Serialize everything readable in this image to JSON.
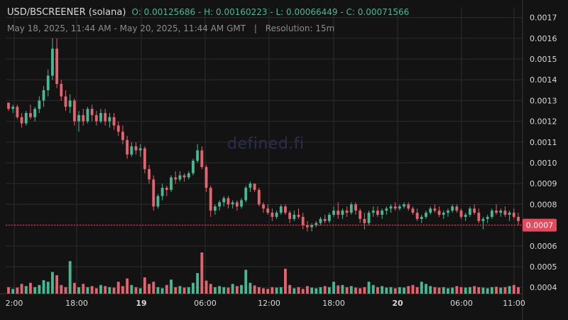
{
  "header": {
    "pair": "USD/BSCREENER (solana)",
    "ohlc": "O: 0.00125686 - H: 0.00160223 - L: 0.00066449 - C: 0.00071566",
    "range": "May 18, 2025, 11:44 AM - May 20, 2025, 11:44 AM GMT",
    "separator": "|",
    "resolution": "Resolution: 15m"
  },
  "watermark": "defined.fi",
  "colors": {
    "background": "#131313",
    "up": "#48b892",
    "down": "#e5636d",
    "grid": "#2c2c2c",
    "axis_text": "#d9d9d9",
    "last_price_tag": "#e5495b"
  },
  "chart_data": {
    "type": "candlestick",
    "resolution": "15m",
    "x_tick_labels": [
      "2:00",
      "18:00",
      "19",
      "06:00",
      "12:00",
      "18:00",
      "20",
      "06:00",
      "11:00"
    ],
    "y_tick_labels": [
      "0.0017",
      "0.0016",
      "0.0015",
      "0.0014",
      "0.0013",
      "0.0012",
      "0.0011",
      "0.0010",
      "0.0009",
      "0.0008",
      "0.0007",
      "0.0006",
      "0.0005",
      "0.0004"
    ],
    "ylim": [
      0.00037,
      0.00175
    ],
    "last_price": 0.0007,
    "last_price_label": "0.0007",
    "grid": true,
    "watermark_visible": true,
    "ohlc": [
      [
        0.00129,
        0.00129,
        0.00125,
        0.00126
      ],
      [
        0.00126,
        0.00128,
        0.00124,
        0.00127
      ],
      [
        0.00127,
        0.00128,
        0.00121,
        0.00122
      ],
      [
        0.00122,
        0.00124,
        0.00117,
        0.00119
      ],
      [
        0.00119,
        0.00125,
        0.00118,
        0.00124
      ],
      [
        0.00124,
        0.00128,
        0.00121,
        0.00122
      ],
      [
        0.00122,
        0.00127,
        0.0012,
        0.00126
      ],
      [
        0.00126,
        0.00132,
        0.00124,
        0.0013
      ],
      [
        0.0013,
        0.00137,
        0.00127,
        0.00135
      ],
      [
        0.00135,
        0.00145,
        0.00132,
        0.00142
      ],
      [
        0.00142,
        0.0016,
        0.0014,
        0.00155
      ],
      [
        0.00155,
        0.0016,
        0.00136,
        0.00138
      ],
      [
        0.00138,
        0.0014,
        0.0013,
        0.00132
      ],
      [
        0.00132,
        0.00135,
        0.00125,
        0.00127
      ],
      [
        0.00127,
        0.00133,
        0.00124,
        0.0013
      ],
      [
        0.0013,
        0.00131,
        0.00118,
        0.0012
      ],
      [
        0.0012,
        0.00125,
        0.00115,
        0.00123
      ],
      [
        0.00123,
        0.00126,
        0.00118,
        0.0012
      ],
      [
        0.0012,
        0.00127,
        0.00119,
        0.00126
      ],
      [
        0.00126,
        0.00128,
        0.0012,
        0.00123
      ],
      [
        0.00123,
        0.00125,
        0.00118,
        0.0012
      ],
      [
        0.0012,
        0.00126,
        0.00119,
        0.00124
      ],
      [
        0.00124,
        0.00126,
        0.00118,
        0.0012
      ],
      [
        0.0012,
        0.00124,
        0.00117,
        0.00122
      ],
      [
        0.00122,
        0.00124,
        0.00116,
        0.00118
      ],
      [
        0.00118,
        0.0012,
        0.00113,
        0.00115
      ],
      [
        0.00115,
        0.00118,
        0.00109,
        0.00111
      ],
      [
        0.00111,
        0.00113,
        0.00102,
        0.00104
      ],
      [
        0.00104,
        0.0011,
        0.00103,
        0.00108
      ],
      [
        0.00108,
        0.0011,
        0.00104,
        0.00106
      ],
      [
        0.00106,
        0.00109,
        0.00103,
        0.00107
      ],
      [
        0.00107,
        0.00108,
        0.00095,
        0.00097
      ],
      [
        0.00097,
        0.00099,
        0.0009,
        0.00092
      ],
      [
        0.00092,
        0.00094,
        0.00077,
        0.00079
      ],
      [
        0.00079,
        0.00085,
        0.00078,
        0.00084
      ],
      [
        0.00084,
        0.0009,
        0.00082,
        0.00088
      ],
      [
        0.00088,
        0.00089,
        0.00084,
        0.00087
      ],
      [
        0.00087,
        0.00094,
        0.00086,
        0.00093
      ],
      [
        0.00093,
        0.00096,
        0.0009,
        0.00092
      ],
      [
        0.00092,
        0.00096,
        0.00091,
        0.00094
      ],
      [
        0.00094,
        0.00095,
        0.00091,
        0.00093
      ],
      [
        0.00093,
        0.00096,
        0.00092,
        0.00095
      ],
      [
        0.00095,
        0.00102,
        0.00094,
        0.00101
      ],
      [
        0.00101,
        0.00109,
        0.001,
        0.00106
      ],
      [
        0.00106,
        0.00108,
        0.00097,
        0.00098
      ],
      [
        0.00098,
        0.00099,
        0.00086,
        0.00088
      ],
      [
        0.00088,
        0.00089,
        0.00074,
        0.00077
      ],
      [
        0.00077,
        0.0008,
        0.00075,
        0.00079
      ],
      [
        0.00079,
        0.00082,
        0.00077,
        0.00081
      ],
      [
        0.00081,
        0.00084,
        0.00079,
        0.00083
      ],
      [
        0.00083,
        0.00084,
        0.00078,
        0.0008
      ],
      [
        0.0008,
        0.00082,
        0.00078,
        0.00081
      ],
      [
        0.00081,
        0.00082,
        0.00077,
        0.00079
      ],
      [
        0.00079,
        0.00083,
        0.00078,
        0.00082
      ],
      [
        0.00082,
        0.00089,
        0.00081,
        0.00088
      ],
      [
        0.00088,
        0.00091,
        0.00086,
        0.0009
      ],
      [
        0.0009,
        0.0009,
        0.00086,
        0.00087
      ],
      [
        0.00087,
        0.00088,
        0.00079,
        0.0008
      ],
      [
        0.0008,
        0.00081,
        0.00076,
        0.00078
      ],
      [
        0.00078,
        0.0008,
        0.00075,
        0.00076
      ],
      [
        0.00076,
        0.00078,
        0.00072,
        0.00074
      ],
      [
        0.00074,
        0.00077,
        0.00073,
        0.00076
      ],
      [
        0.00076,
        0.0008,
        0.00075,
        0.00079
      ],
      [
        0.00079,
        0.0008,
        0.00075,
        0.00076
      ],
      [
        0.00076,
        0.00077,
        0.00071,
        0.00073
      ],
      [
        0.00073,
        0.00077,
        0.00072,
        0.00075
      ],
      [
        0.00075,
        0.00078,
        0.00073,
        0.00074
      ],
      [
        0.00074,
        0.00076,
        0.00068,
        0.0007
      ],
      [
        0.0007,
        0.00072,
        0.00067,
        0.00069
      ],
      [
        0.00069,
        0.00071,
        0.00067,
        0.0007
      ],
      [
        0.0007,
        0.00072,
        0.00069,
        0.00071
      ],
      [
        0.00071,
        0.00074,
        0.0007,
        0.00073
      ],
      [
        0.00073,
        0.00075,
        0.00071,
        0.00072
      ],
      [
        0.00072,
        0.00076,
        0.00071,
        0.00075
      ],
      [
        0.00075,
        0.00079,
        0.00074,
        0.00077
      ],
      [
        0.00077,
        0.00081,
        0.00073,
        0.00075
      ],
      [
        0.00075,
        0.00078,
        0.00073,
        0.00077
      ],
      [
        0.00077,
        0.00079,
        0.00074,
        0.00076
      ],
      [
        0.00076,
        0.00081,
        0.00075,
        0.0008
      ],
      [
        0.0008,
        0.00081,
        0.00075,
        0.00077
      ],
      [
        0.00077,
        0.00078,
        0.00071,
        0.00073
      ],
      [
        0.00073,
        0.00076,
        0.00068,
        0.00071
      ],
      [
        0.00071,
        0.00077,
        0.0007,
        0.00076
      ],
      [
        0.00076,
        0.00079,
        0.00074,
        0.00077
      ],
      [
        0.00077,
        0.00079,
        0.00074,
        0.00075
      ],
      [
        0.00075,
        0.00078,
        0.00073,
        0.00077
      ],
      [
        0.00077,
        0.00079,
        0.00075,
        0.00078
      ],
      [
        0.00078,
        0.0008,
        0.00076,
        0.00079
      ],
      [
        0.00079,
        0.00081,
        0.00077,
        0.00078
      ],
      [
        0.00078,
        0.0008,
        0.00077,
        0.00079
      ],
      [
        0.00079,
        0.00081,
        0.00078,
        0.0008
      ],
      [
        0.0008,
        0.00081,
        0.00077,
        0.00078
      ],
      [
        0.00078,
        0.00079,
        0.00075,
        0.00076
      ],
      [
        0.00076,
        0.00078,
        0.00072,
        0.00073
      ],
      [
        0.00073,
        0.00075,
        0.00071,
        0.00074
      ],
      [
        0.00074,
        0.00077,
        0.00073,
        0.00076
      ],
      [
        0.00076,
        0.00079,
        0.00075,
        0.00078
      ],
      [
        0.00078,
        0.0008,
        0.00076,
        0.00077
      ],
      [
        0.00077,
        0.00079,
        0.00074,
        0.00075
      ],
      [
        0.00075,
        0.00077,
        0.00073,
        0.00076
      ],
      [
        0.00076,
        0.00078,
        0.00074,
        0.00077
      ],
      [
        0.00077,
        0.0008,
        0.00076,
        0.00079
      ],
      [
        0.00079,
        0.0008,
        0.00076,
        0.00077
      ],
      [
        0.00077,
        0.00078,
        0.00073,
        0.00074
      ],
      [
        0.00074,
        0.00076,
        0.00072,
        0.00075
      ],
      [
        0.00075,
        0.00079,
        0.00074,
        0.00078
      ],
      [
        0.00078,
        0.0008,
        0.00075,
        0.00076
      ],
      [
        0.00076,
        0.00078,
        0.00071,
        0.00072
      ],
      [
        0.00072,
        0.00074,
        0.00068,
        0.00073
      ],
      [
        0.00073,
        0.00075,
        0.00071,
        0.00074
      ],
      [
        0.00074,
        0.00078,
        0.00073,
        0.00077
      ],
      [
        0.00077,
        0.0008,
        0.00075,
        0.00076
      ],
      [
        0.00076,
        0.00078,
        0.00074,
        0.00077
      ],
      [
        0.00077,
        0.00079,
        0.00074,
        0.00075
      ],
      [
        0.00075,
        0.00077,
        0.00072,
        0.00076
      ],
      [
        0.00076,
        0.00078,
        0.00073,
        0.00074
      ],
      [
        0.00074,
        0.00076,
        0.0007,
        0.00072
      ]
    ],
    "volume": [
      0.3,
      0.22,
      0.28,
      0.45,
      0.35,
      0.5,
      0.3,
      0.4,
      0.62,
      0.55,
      1.0,
      0.85,
      0.4,
      0.3,
      1.5,
      0.5,
      0.3,
      0.45,
      0.3,
      0.35,
      0.25,
      0.4,
      0.35,
      0.3,
      0.28,
      0.55,
      0.35,
      0.7,
      0.4,
      0.3,
      0.25,
      0.75,
      0.45,
      0.55,
      0.3,
      0.25,
      0.4,
      0.65,
      0.3,
      0.35,
      0.28,
      0.3,
      0.5,
      0.95,
      1.9,
      0.6,
      0.45,
      0.3,
      0.35,
      0.3,
      0.28,
      0.45,
      0.35,
      0.4,
      1.1,
      0.5,
      0.38,
      0.3,
      0.25,
      0.22,
      0.3,
      0.28,
      0.3,
      1.15,
      0.4,
      0.25,
      0.3,
      0.22,
      0.35,
      0.28,
      0.25,
      0.3,
      0.35,
      0.3,
      0.55,
      0.38,
      0.4,
      0.3,
      0.35,
      0.28,
      0.25,
      0.3,
      0.55,
      0.4,
      0.3,
      0.35,
      0.28,
      0.3,
      0.25,
      0.3,
      0.28,
      0.35,
      0.4,
      0.3,
      0.55,
      0.45,
      0.35,
      0.3,
      0.28,
      0.3,
      0.25,
      0.28,
      0.35,
      0.3,
      0.28,
      0.3,
      0.35,
      0.3,
      0.28,
      0.25,
      0.3,
      0.32,
      0.28,
      0.3,
      0.35,
      0.4,
      0.3,
      0.28
    ]
  }
}
